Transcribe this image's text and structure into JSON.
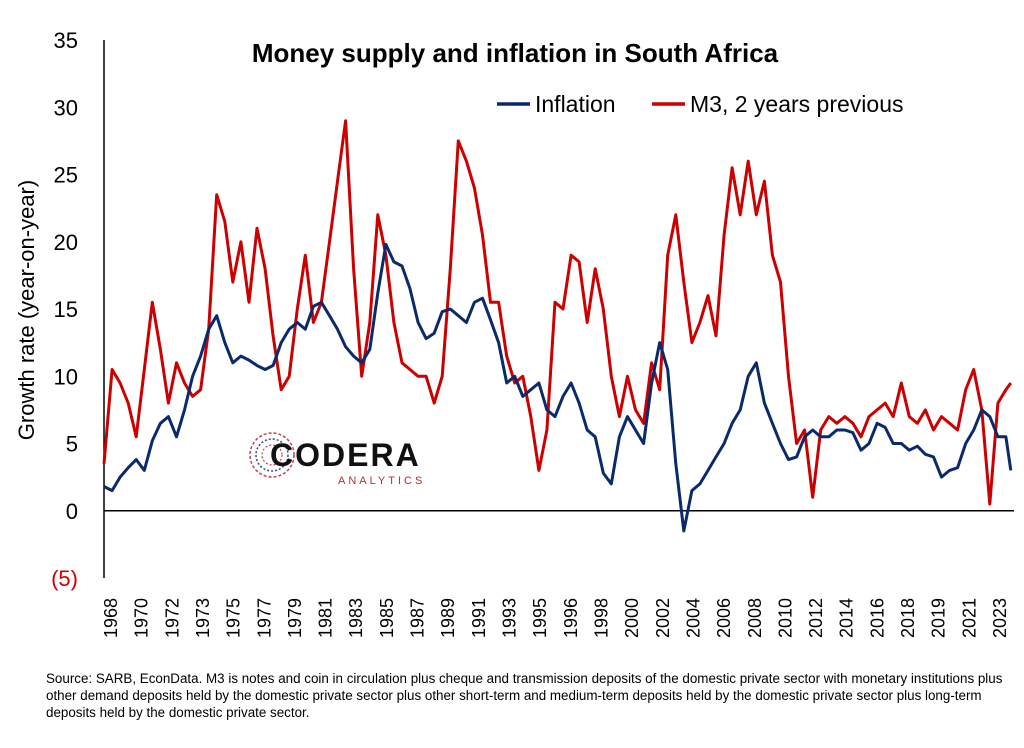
{
  "chart_data": {
    "type": "line",
    "title": "Money supply and inflation in South Africa",
    "ylabel": "Growth rate (year-on-year)",
    "xlabel": "",
    "ylim": [
      -5,
      35
    ],
    "xlim": [
      1968,
      2024.5
    ],
    "yticks": [
      {
        "value": 35,
        "label": "35"
      },
      {
        "value": 30,
        "label": "30"
      },
      {
        "value": 25,
        "label": "25"
      },
      {
        "value": 20,
        "label": "20"
      },
      {
        "value": 15,
        "label": "15"
      },
      {
        "value": 10,
        "label": "10"
      },
      {
        "value": 5,
        "label": "5"
      },
      {
        "value": 0,
        "label": "0"
      },
      {
        "value": -5,
        "label": "(5)"
      }
    ],
    "xticks": [
      "1968",
      "1970",
      "1972",
      "1973",
      "1975",
      "1977",
      "1979",
      "1981",
      "1983",
      "1985",
      "1987",
      "1989",
      "1991",
      "1993",
      "1995",
      "1996",
      "1998",
      "2000",
      "2002",
      "2004",
      "2006",
      "2008",
      "2010",
      "2012",
      "2014",
      "2016",
      "2018",
      "2019",
      "2021",
      "2023"
    ],
    "legend_position": "top-right",
    "grid": false,
    "series": [
      {
        "name": "Inflation",
        "color": "#0b2a6b",
        "x": [
          1968.0,
          1968.5,
          1969.0,
          1969.5,
          1970.0,
          1970.5,
          1971.0,
          1971.5,
          1972.0,
          1972.5,
          1973.0,
          1973.5,
          1974.0,
          1974.5,
          1975.0,
          1975.5,
          1976.0,
          1976.5,
          1977.0,
          1977.5,
          1978.0,
          1978.5,
          1979.0,
          1979.5,
          1980.0,
          1980.5,
          1981.0,
          1981.5,
          1982.0,
          1982.5,
          1983.0,
          1983.5,
          1984.0,
          1984.5,
          1985.0,
          1985.5,
          1986.0,
          1986.5,
          1987.0,
          1987.5,
          1988.0,
          1988.5,
          1989.0,
          1989.5,
          1990.0,
          1990.5,
          1991.0,
          1991.5,
          1992.0,
          1992.5,
          1993.0,
          1993.5,
          1994.0,
          1994.5,
          1995.0,
          1995.5,
          1996.0,
          1996.5,
          1997.0,
          1997.5,
          1998.0,
          1998.5,
          1999.0,
          1999.5,
          2000.0,
          2000.5,
          2001.0,
          2001.5,
          2002.0,
          2002.5,
          2003.0,
          2003.5,
          2004.0,
          2004.5,
          2005.0,
          2005.5,
          2006.0,
          2006.5,
          2007.0,
          2007.5,
          2008.0,
          2008.5,
          2009.0,
          2009.5,
          2010.0,
          2010.5,
          2011.0,
          2011.5,
          2012.0,
          2012.5,
          2013.0,
          2013.5,
          2014.0,
          2014.5,
          2015.0,
          2015.5,
          2016.0,
          2016.5,
          2017.0,
          2017.5,
          2018.0,
          2018.5,
          2019.0,
          2019.5,
          2020.0,
          2020.5,
          2021.0,
          2021.5,
          2022.0,
          2022.5,
          2023.0,
          2023.5,
          2024.0,
          2024.3
        ],
        "values": [
          1.8,
          1.5,
          2.5,
          3.2,
          3.8,
          3.0,
          5.2,
          6.5,
          7.0,
          5.5,
          7.5,
          10.0,
          11.5,
          13.5,
          14.5,
          12.5,
          11.0,
          11.5,
          11.2,
          10.8,
          10.5,
          10.8,
          12.5,
          13.5,
          14.0,
          13.5,
          15.2,
          15.5,
          14.5,
          13.5,
          12.2,
          11.5,
          11.0,
          12.0,
          16.2,
          19.8,
          18.5,
          18.2,
          16.5,
          14.0,
          12.8,
          13.2,
          14.8,
          15.0,
          14.5,
          14.0,
          15.5,
          15.8,
          14.2,
          12.5,
          9.5,
          10.0,
          8.5,
          9.0,
          9.5,
          7.5,
          7.0,
          8.5,
          9.5,
          8.0,
          6.0,
          5.5,
          2.8,
          2.0,
          5.5,
          7.0,
          6.0,
          5.0,
          9.5,
          12.5,
          10.5,
          3.5,
          -1.5,
          1.5,
          2.0,
          3.0,
          4.0,
          5.0,
          6.5,
          7.5,
          10.0,
          11.0,
          8.0,
          6.5,
          5.0,
          3.8,
          4.0,
          5.5,
          6.0,
          5.5,
          5.5,
          6.0,
          6.0,
          5.8,
          4.5,
          5.0,
          6.5,
          6.2,
          5.0,
          5.0,
          4.5,
          4.8,
          4.2,
          4.0,
          2.5,
          3.0,
          3.2,
          5.0,
          6.0,
          7.5,
          7.0,
          5.5,
          5.5,
          3.0
        ]
      },
      {
        "name": "M3, 2 years previous",
        "color": "#cc0000",
        "x": [
          1968.0,
          1968.5,
          1969.0,
          1969.5,
          1970.0,
          1970.5,
          1971.0,
          1971.5,
          1972.0,
          1972.5,
          1973.0,
          1973.5,
          1974.0,
          1974.5,
          1975.0,
          1975.5,
          1976.0,
          1976.5,
          1977.0,
          1977.5,
          1978.0,
          1978.5,
          1979.0,
          1979.5,
          1980.0,
          1980.5,
          1981.0,
          1981.5,
          1982.0,
          1982.5,
          1983.0,
          1983.5,
          1984.0,
          1984.5,
          1985.0,
          1985.5,
          1986.0,
          1986.5,
          1987.0,
          1987.5,
          1988.0,
          1988.5,
          1989.0,
          1989.5,
          1990.0,
          1990.5,
          1991.0,
          1991.5,
          1992.0,
          1992.5,
          1993.0,
          1993.5,
          1994.0,
          1994.5,
          1995.0,
          1995.5,
          1996.0,
          1996.5,
          1997.0,
          1997.5,
          1998.0,
          1998.5,
          1999.0,
          1999.5,
          2000.0,
          2000.5,
          2001.0,
          2001.5,
          2002.0,
          2002.5,
          2003.0,
          2003.5,
          2004.0,
          2004.5,
          2005.0,
          2005.5,
          2006.0,
          2006.5,
          2007.0,
          2007.5,
          2008.0,
          2008.5,
          2009.0,
          2009.5,
          2010.0,
          2010.5,
          2011.0,
          2011.5,
          2012.0,
          2012.5,
          2013.0,
          2013.5,
          2014.0,
          2014.5,
          2015.0,
          2015.5,
          2016.0,
          2016.5,
          2017.0,
          2017.5,
          2018.0,
          2018.5,
          2019.0,
          2019.5,
          2020.0,
          2020.5,
          2021.0,
          2021.5,
          2022.0,
          2022.5,
          2023.0,
          2023.5,
          2024.0,
          2024.3
        ],
        "values": [
          3.5,
          10.5,
          9.5,
          8.0,
          5.5,
          10.5,
          15.5,
          12.0,
          8.0,
          11.0,
          9.5,
          8.5,
          9.0,
          13.5,
          23.5,
          21.5,
          17.0,
          20.0,
          15.5,
          21.0,
          18.0,
          13.0,
          9.0,
          10.0,
          15.0,
          19.0,
          14.0,
          15.5,
          20.0,
          24.5,
          29.0,
          18.0,
          10.0,
          14.0,
          22.0,
          19.0,
          14.0,
          11.0,
          10.5,
          10.0,
          10.0,
          8.0,
          10.0,
          18.0,
          27.5,
          26.0,
          24.0,
          20.5,
          15.5,
          15.5,
          11.5,
          9.5,
          10.0,
          7.0,
          3.0,
          6.0,
          15.5,
          15.0,
          19.0,
          18.5,
          14.0,
          18.0,
          15.0,
          10.0,
          7.0,
          10.0,
          7.5,
          6.5,
          11.0,
          9.0,
          19.0,
          22.0,
          17.0,
          12.5,
          14.0,
          16.0,
          13.0,
          20.5,
          25.5,
          22.0,
          26.0,
          22.0,
          24.5,
          19.0,
          17.0,
          10.0,
          5.0,
          6.0,
          1.0,
          6.0,
          7.0,
          6.5,
          7.0,
          6.5,
          5.5,
          7.0,
          7.5,
          8.0,
          7.0,
          9.5,
          7.0,
          6.5,
          7.5,
          6.0,
          7.0,
          6.5,
          6.0,
          9.0,
          10.5,
          7.5,
          0.5,
          8.0,
          9.0,
          9.5
        ]
      }
    ]
  },
  "logo": {
    "word": "CODERA",
    "sub": "ANALYTICS"
  },
  "source_note": "Source: SARB, EconData. M3 is notes and coin in circulation plus cheque and transmission deposits of the domestic private sector with monetary institutions plus other demand deposits held by the domestic private sector plus other short-term and medium-term deposits held by the domestic private sector plus long-term deposits held by the domestic private sector."
}
